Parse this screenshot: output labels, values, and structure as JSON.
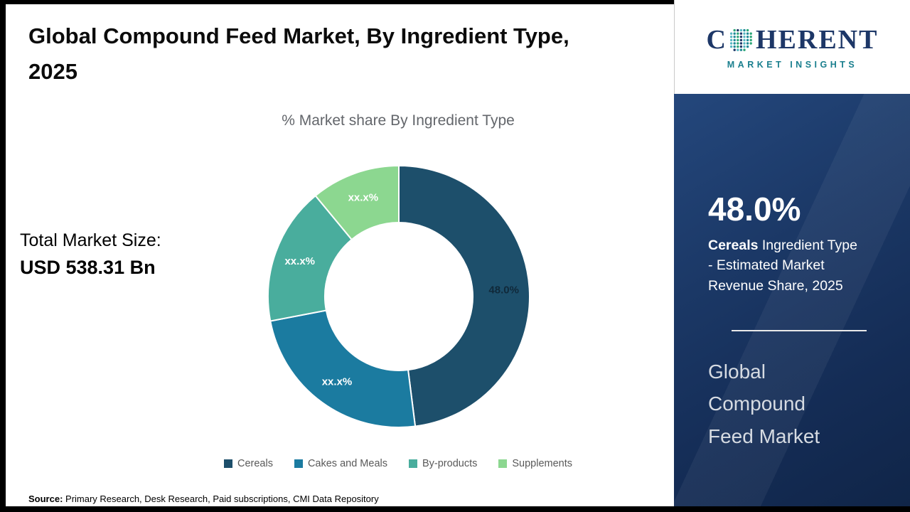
{
  "header": {
    "title": "Global Compound Feed Market, By Ingredient Type, 2025"
  },
  "logo": {
    "c": "C",
    "rest": "HERENT",
    "tagline": "MARKET INSIGHTS",
    "globe_icon": "dotted-globe",
    "navy_color": "#1d3767",
    "teal_color": "#1a7f8e"
  },
  "market_size": {
    "label": "Total Market Size:",
    "value": "USD 538.31 Bn"
  },
  "chart_data": {
    "type": "pie",
    "variant": "donut",
    "title": "% Market share By Ingredient Type",
    "categories": [
      "Cereals",
      "Cakes and Meals",
      "By-products",
      "Supplements"
    ],
    "values": [
      48.0,
      24.0,
      17.0,
      11.0
    ],
    "labels": [
      "48.0%",
      "xx.x%",
      "xx.x%",
      "xx.x%"
    ],
    "colors": [
      "#1d4f6b",
      "#1b7ba0",
      "#49ad9d",
      "#8cd790"
    ],
    "label_colors": [
      "#10293a",
      "#ffffff",
      "#ffffff",
      "#ffffff"
    ],
    "legend_position": "bottom",
    "note": "Only the Cereals slice (48.0%) is labeled numerically in the source; other slice values are masked as xx.x% and are visual estimates."
  },
  "side_panel": {
    "stat_value": "48.0%",
    "stat_bold": "Cereals",
    "stat_rest": " Ingredient Type - Estimated Market Revenue Share, 2025",
    "panel_title": "Global Compound Feed Market"
  },
  "footer": {
    "source_label": "Source:",
    "source_text": " Primary Research, Desk Research, Paid subscriptions, CMI Data Repository"
  }
}
